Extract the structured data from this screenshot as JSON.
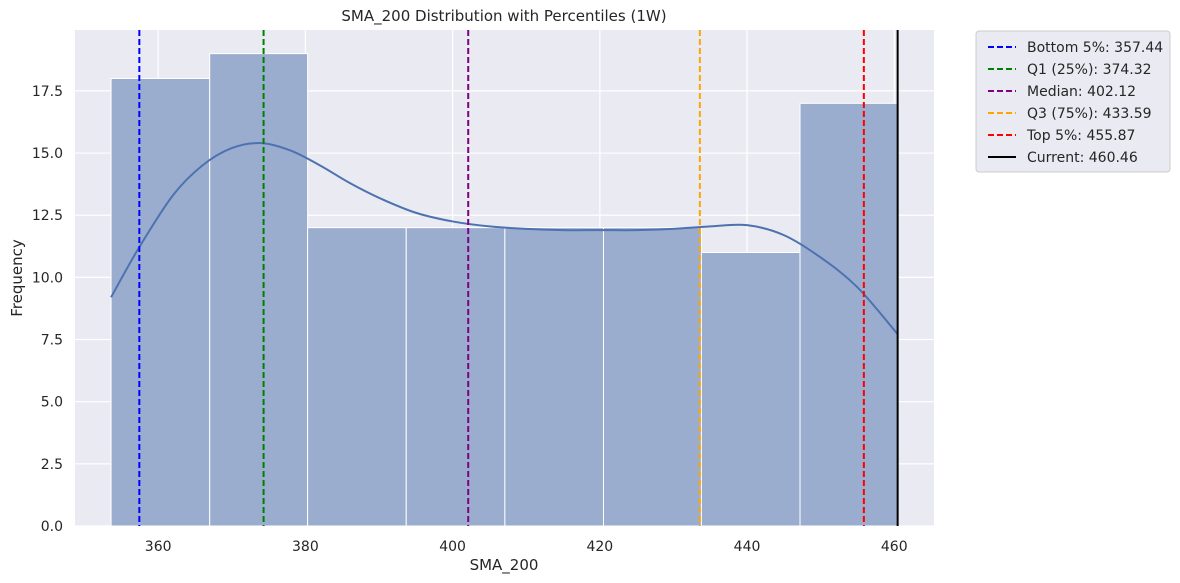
{
  "chart_data": {
    "type": "bar",
    "title": "SMA_200 Distribution with Percentiles (1W)",
    "xlabel": "SMA_200",
    "ylabel": "Frequency",
    "xlim": [
      348.7,
      465.4
    ],
    "ylim": [
      0,
      19.95
    ],
    "grid": true,
    "legend_position": "outside-top-right",
    "xticks": [
      "360",
      "380",
      "400",
      "420",
      "440",
      "460"
    ],
    "xtick_values": [
      360,
      380,
      400,
      420,
      440,
      460
    ],
    "yticks": [
      "0.0",
      "2.5",
      "5.0",
      "7.5",
      "10.0",
      "12.5",
      "15.0",
      "17.5"
    ],
    "ytick_values": [
      0,
      2.5,
      5,
      7.5,
      10,
      12.5,
      15,
      17.5
    ],
    "bins": [
      {
        "start": 353.6,
        "end": 367.0,
        "count": 18
      },
      {
        "start": 367.0,
        "end": 380.3,
        "count": 19
      },
      {
        "start": 380.3,
        "end": 393.7,
        "count": 12
      },
      {
        "start": 393.7,
        "end": 407.1,
        "count": 12
      },
      {
        "start": 407.1,
        "end": 420.5,
        "count": 12
      },
      {
        "start": 420.5,
        "end": 433.8,
        "count": 12
      },
      {
        "start": 433.8,
        "end": 447.2,
        "count": 11
      },
      {
        "start": 447.2,
        "end": 460.5,
        "count": 17
      }
    ],
    "kde": {
      "x": [
        353.6,
        357.4,
        362,
        366,
        370,
        374,
        378,
        382,
        386,
        390,
        395,
        400,
        405,
        410,
        415,
        420,
        425,
        430,
        435,
        440,
        445,
        450,
        455,
        460.5
      ],
      "y": [
        9.2,
        11.2,
        13.3,
        14.5,
        15.2,
        15.4,
        15.1,
        14.5,
        13.8,
        13.2,
        12.6,
        12.25,
        12.05,
        11.95,
        11.9,
        11.9,
        11.9,
        11.95,
        12.05,
        12.1,
        11.7,
        10.8,
        9.6,
        7.7
      ]
    },
    "lines": [
      {
        "label": "Bottom 5%: 357.44",
        "value": 357.44,
        "color": "#0000ff",
        "style": "dashed"
      },
      {
        "label": "Q1 (25%): 374.32",
        "value": 374.32,
        "color": "#008000",
        "style": "dashed"
      },
      {
        "label": "Median: 402.12",
        "value": 402.12,
        "color": "#800080",
        "style": "dashed"
      },
      {
        "label": "Q3 (75%): 433.59",
        "value": 433.59,
        "color": "#ffa500",
        "style": "dashed"
      },
      {
        "label": "Top 5%: 455.87",
        "value": 455.87,
        "color": "#ff0000",
        "style": "dashed"
      },
      {
        "label": "Current: 460.46",
        "value": 460.46,
        "color": "#000000",
        "style": "solid"
      }
    ],
    "colors": {
      "bar_fill": "#9badcf",
      "kde_line": "#4c72b0",
      "plot_background": "#eaeaf2",
      "grid": "#ffffff"
    }
  }
}
